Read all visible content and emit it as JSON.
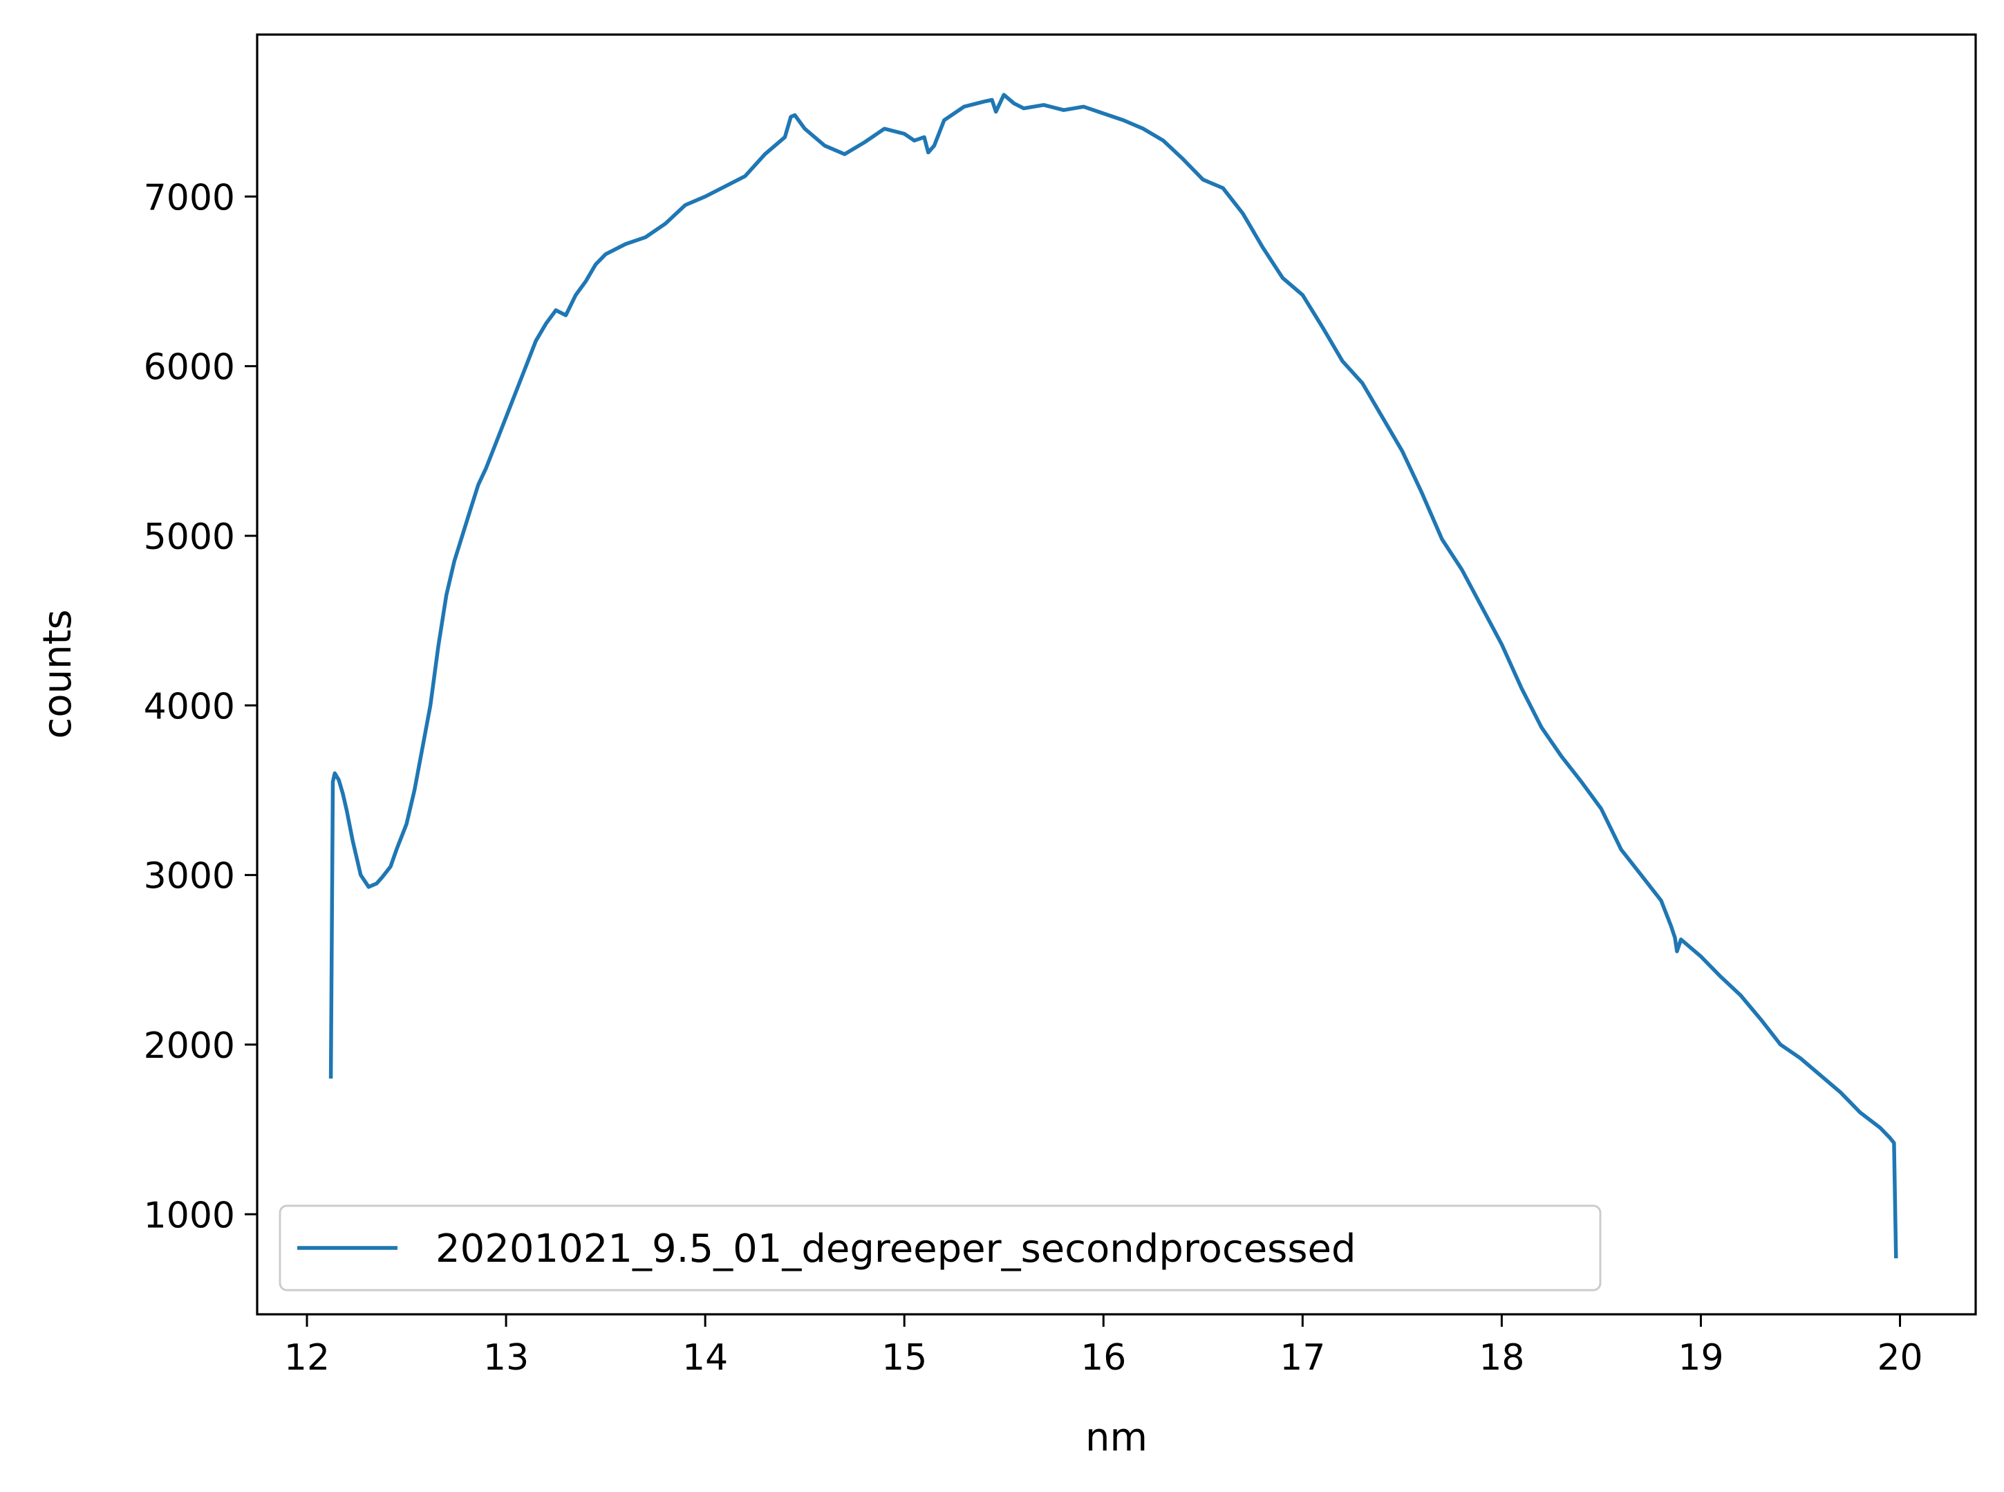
{
  "chart_data": {
    "type": "line",
    "title": "",
    "xlabel": "nm",
    "ylabel": "counts",
    "xlim": [
      11.75,
      20.38
    ],
    "ylim": [
      410,
      7955
    ],
    "xticks": [
      12,
      13,
      14,
      15,
      16,
      17,
      18,
      19,
      20
    ],
    "yticks": [
      1000,
      2000,
      3000,
      4000,
      5000,
      6000,
      7000
    ],
    "grid": false,
    "legend_position": "lower-left",
    "colors": {
      "series": "#1f77b4",
      "axes": "#000000",
      "legend_border": "#cccccc"
    },
    "series": [
      {
        "name": "20201021_9.5_01_degreeper_secondprocessed",
        "x": [
          12.12,
          12.13,
          12.14,
          12.16,
          12.18,
          12.2,
          12.23,
          12.27,
          12.31,
          12.35,
          12.38,
          12.42,
          12.45,
          12.5,
          12.54,
          12.58,
          12.62,
          12.66,
          12.7,
          12.74,
          12.78,
          12.82,
          12.86,
          12.9,
          12.95,
          13.0,
          13.05,
          13.1,
          13.15,
          13.2,
          13.25,
          13.3,
          13.35,
          13.4,
          13.45,
          13.5,
          13.6,
          13.7,
          13.8,
          13.9,
          14.0,
          14.1,
          14.2,
          14.3,
          14.4,
          14.43,
          14.45,
          14.5,
          14.6,
          14.7,
          14.8,
          14.9,
          15.0,
          15.05,
          15.1,
          15.12,
          15.15,
          15.2,
          15.3,
          15.4,
          15.44,
          15.46,
          15.5,
          15.55,
          15.6,
          15.7,
          15.8,
          15.9,
          16.0,
          16.1,
          16.2,
          16.3,
          16.4,
          16.5,
          16.6,
          16.7,
          16.8,
          16.9,
          17.0,
          17.1,
          17.2,
          17.3,
          17.4,
          17.5,
          17.6,
          17.7,
          17.8,
          17.9,
          18.0,
          18.1,
          18.2,
          18.3,
          18.4,
          18.5,
          18.6,
          18.7,
          18.8,
          18.85,
          18.87,
          18.88,
          18.9,
          19.0,
          19.1,
          19.2,
          19.3,
          19.4,
          19.5,
          19.6,
          19.7,
          19.8,
          19.9,
          19.95,
          19.97,
          19.98
        ],
        "y": [
          1800,
          3550,
          3600,
          3560,
          3480,
          3380,
          3200,
          3000,
          2930,
          2950,
          2990,
          3050,
          3150,
          3300,
          3500,
          3750,
          4000,
          4350,
          4650,
          4850,
          5000,
          5150,
          5300,
          5400,
          5550,
          5700,
          5850,
          6000,
          6150,
          6250,
          6330,
          6300,
          6420,
          6500,
          6600,
          6660,
          6720,
          6760,
          6840,
          6950,
          7000,
          7060,
          7120,
          7250,
          7350,
          7470,
          7480,
          7400,
          7300,
          7250,
          7320,
          7400,
          7370,
          7330,
          7350,
          7260,
          7300,
          7450,
          7530,
          7560,
          7570,
          7500,
          7600,
          7550,
          7520,
          7540,
          7510,
          7530,
          7490,
          7450,
          7400,
          7330,
          7220,
          7100,
          7050,
          6900,
          6700,
          6520,
          6420,
          6230,
          6030,
          5900,
          5700,
          5500,
          5250,
          4980,
          4800,
          4580,
          4360,
          4100,
          3870,
          3700,
          3550,
          3390,
          3150,
          3000,
          2850,
          2700,
          2630,
          2550,
          2620,
          2520,
          2400,
          2290,
          2150,
          2000,
          1920,
          1820,
          1720,
          1600,
          1510,
          1450,
          1420,
          740
        ]
      }
    ]
  }
}
